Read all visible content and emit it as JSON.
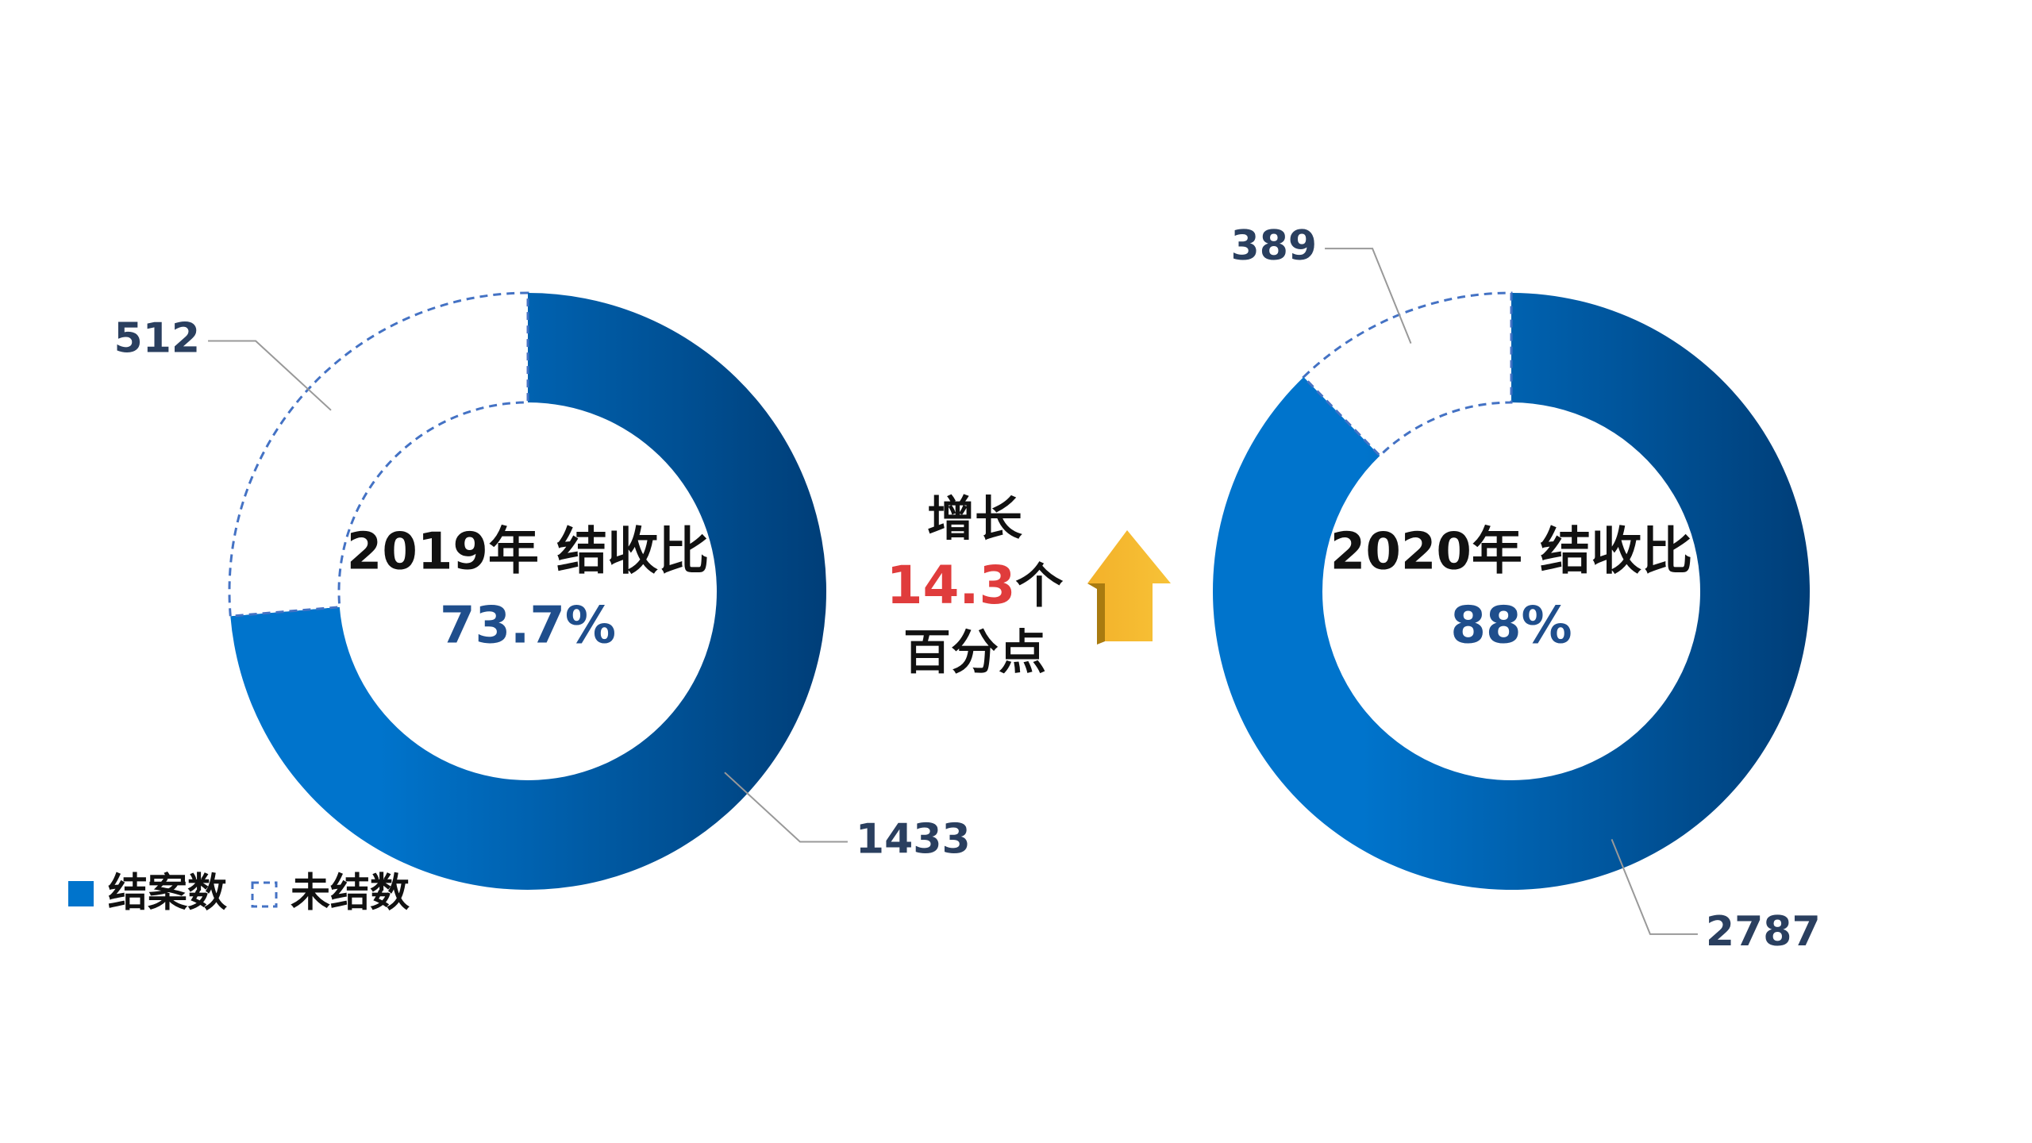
{
  "chart_data": [
    {
      "type": "donut",
      "title": "2019年 结收比",
      "center_value": "73.7%",
      "categories": [
        "结案数",
        "未结数"
      ],
      "values": [
        1433,
        512
      ]
    },
    {
      "type": "donut",
      "title": "2020年 结收比",
      "center_value": "88%",
      "categories": [
        "结案数",
        "未结数"
      ],
      "values": [
        2787,
        389
      ]
    }
  ],
  "annotation": {
    "line1": "增长",
    "number": 14.3,
    "unit": "个",
    "line3": "百分点"
  }
}
